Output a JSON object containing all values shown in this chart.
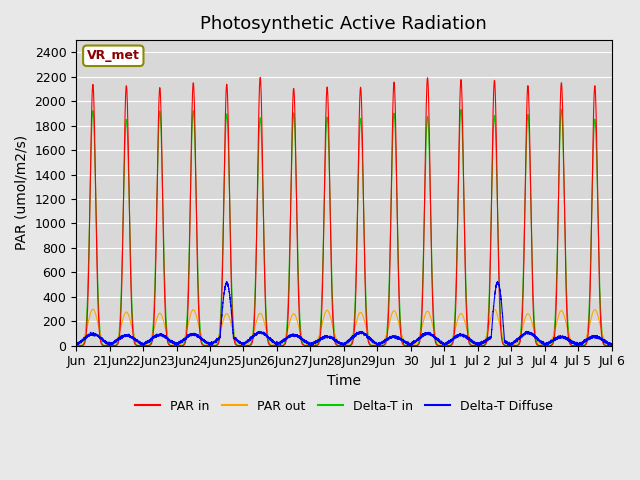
{
  "title": "Photosynthetic Active Radiation",
  "ylabel": "PAR (umol/m2/s)",
  "xlabel": "Time",
  "ylim": [
    0,
    2500
  ],
  "background_color": "#e8e8e8",
  "plot_bg_color": "#d8d8d8",
  "legend_label": "VR_met",
  "series_labels": [
    "PAR in",
    "PAR out",
    "Delta-T in",
    "Delta-T Diffuse"
  ],
  "series_colors": [
    "#ff0000",
    "#ffa500",
    "#00cc00",
    "#0000ff"
  ],
  "x_tick_labels": [
    "Jun",
    "21Jun",
    "22Jun",
    "23Jun",
    "24Jun",
    "25Jun",
    "26Jun",
    "27Jun",
    "28Jun",
    "29Jun",
    "30",
    "Jul 1",
    "Jul 2",
    "Jul 3",
    "Jul 4",
    "Jul 5",
    "Jul 6"
  ],
  "n_days": 16,
  "points_per_day": 480,
  "title_fontsize": 13,
  "label_fontsize": 10,
  "tick_fontsize": 9
}
